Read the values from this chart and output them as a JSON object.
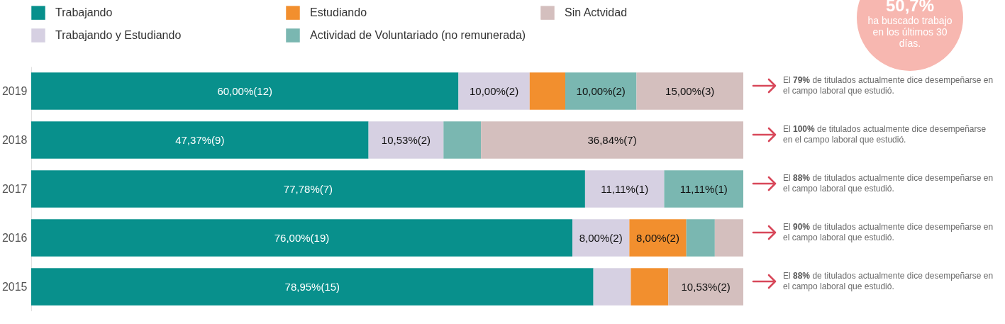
{
  "chart_data": {
    "type": "bar",
    "orientation": "horizontal",
    "stacked": true,
    "categories": [
      "2019",
      "2018",
      "2017",
      "2016",
      "2015"
    ],
    "series": [
      {
        "name": "Trabajando",
        "color": "#08908c",
        "values": [
          60,
          47.37,
          77.78,
          76,
          78.95
        ],
        "value_labels": [
          "60,00%(12)",
          "47,37%(9)",
          "77,78%(7)",
          "76,00%(19)",
          "78,95%(15)"
        ]
      },
      {
        "name": "Trabajando y Estudiando",
        "color": "#d6d0e2",
        "values": [
          10,
          10.53,
          11.11,
          8,
          5.26
        ],
        "value_labels": [
          "10,00%(2)",
          "10,53%(2)",
          "11,11%(1)",
          "8,00%(2)",
          null
        ]
      },
      {
        "name": "Estudiando",
        "color": "#f28f2e",
        "values": [
          5,
          0,
          0,
          8,
          5.26
        ],
        "value_labels": [
          null,
          null,
          null,
          "8,00%(2)",
          null
        ]
      },
      {
        "name": "Actividad de Voluntariado (no remunerada)",
        "color": "#7ab7b1",
        "values": [
          10,
          5.26,
          11.11,
          4,
          0
        ],
        "value_labels": [
          "10,00%(2)",
          null,
          "11,11%(1)",
          null,
          null
        ]
      },
      {
        "name": "Sin Actvidad",
        "color": "#d4bfbe",
        "values": [
          15,
          36.84,
          0,
          4,
          10.53
        ],
        "value_labels": [
          "15,00%(3)",
          "36,84%(7)",
          null,
          null,
          "10,53%(2)"
        ]
      }
    ],
    "legend": "top left",
    "annotations": [
      "50,7%",
      "ha buscado trabajo en los últimos 30 días.",
      "El 79% de titulados actualmente dice desempeñarse en el campo laboral que estudió.",
      "El 100% de titulados actualmente dice desempeñarse en el campo laboral que estudió.",
      "El 88% de titulados actualmente dice desempeñarse en el campo laboral que estudió.",
      "El 90% de titulados actualmente dice desempeñarse en el campo laboral que estudió.",
      "El 88% de titulados actualmente dice desempeñarse en el campo laboral que estudió."
    ]
  }
}
